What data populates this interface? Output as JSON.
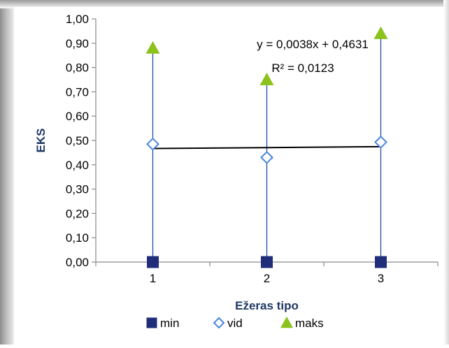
{
  "chart_data": {
    "type": "scatter",
    "x": [
      1,
      2,
      3
    ],
    "xlabel": "Ežeras tipo",
    "ylabel": "EKS",
    "xlim": [
      0.5,
      3.5
    ],
    "ylim": [
      0,
      1
    ],
    "y_ticks": [
      "0,00",
      "0,10",
      "0,20",
      "0,30",
      "0,40",
      "0,50",
      "0,60",
      "0,70",
      "0,80",
      "0,90",
      "1,00"
    ],
    "x_ticks": [
      "1",
      "2",
      "3"
    ],
    "series": [
      {
        "name": "min",
        "values": [
          0,
          0,
          0
        ],
        "color": "#1f2d7a",
        "marker": "square"
      },
      {
        "name": "vid",
        "values": [
          0.485,
          0.43,
          0.493
        ],
        "color": "#4a86d9",
        "marker": "diamond"
      },
      {
        "name": "maks",
        "values": [
          0.88,
          0.75,
          0.94
        ],
        "color": "#8cc21c",
        "marker": "triangle"
      }
    ],
    "drop_lines": true,
    "drop_line_color": "#1f4e9a",
    "trendline": {
      "series": "vid",
      "slope": 0.0038,
      "intercept": 0.4631,
      "equation": "y = 0,0038x + 0,4631",
      "r2": "R² = 0,0123"
    },
    "grid": false,
    "legend": "bottom"
  }
}
